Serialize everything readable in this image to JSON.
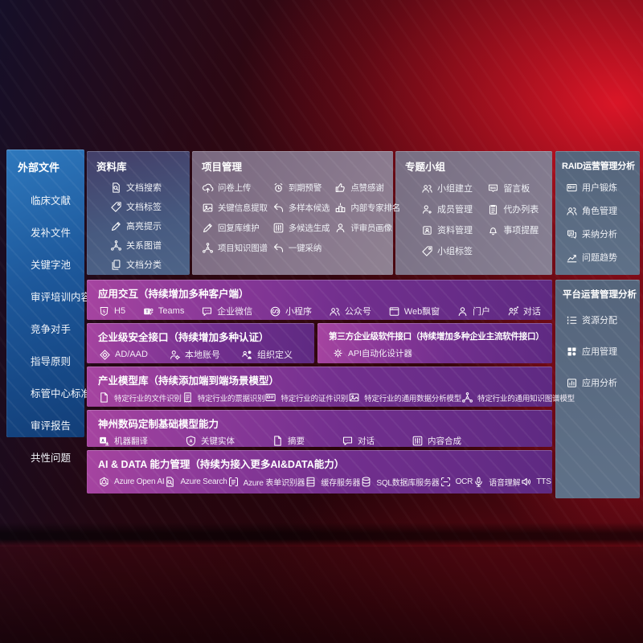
{
  "colors": {
    "bg_red": "#b60f1f",
    "sidebar_blue": "#1f5ea6",
    "panel_mauve": "#82718a",
    "panel_slate": "#5d6d83",
    "band_left": "#a644a0",
    "band_right": "#5e2a82",
    "text": "#ffffff"
  },
  "sidebar": {
    "title": "外部文件",
    "items": [
      "临床文献",
      "发补文件",
      "关键字池",
      "审评培训内容",
      "竞争对手",
      "指导原则",
      "标管中心标准",
      "审评报告",
      "共性问题"
    ]
  },
  "panels": {
    "library": {
      "title": "资料库",
      "items": [
        {
          "icon": "search-doc",
          "label": "文档搜索"
        },
        {
          "icon": "tag",
          "label": "文档标签"
        },
        {
          "icon": "pen",
          "label": "高亮提示"
        },
        {
          "icon": "graph",
          "label": "关系图谱"
        },
        {
          "icon": "docs",
          "label": "文档分类"
        }
      ]
    },
    "project": {
      "title": "项目管理",
      "items": [
        {
          "icon": "cloud-up",
          "label": "问卷上传"
        },
        {
          "icon": "alarm",
          "label": "到期预警"
        },
        {
          "icon": "thumb",
          "label": "点赞感谢"
        },
        {
          "icon": "image",
          "label": "关键信息提取"
        },
        {
          "icon": "reply",
          "label": "多样本候选"
        },
        {
          "icon": "podium",
          "label": "内部专家排名"
        },
        {
          "icon": "pen",
          "label": "回复库维护"
        },
        {
          "icon": "sliders",
          "label": "多候选生成"
        },
        {
          "icon": "person",
          "label": "评审员画像"
        },
        {
          "icon": "graph",
          "label": "项目知识图谱"
        },
        {
          "icon": "reply",
          "label": "一键采纳"
        }
      ]
    },
    "groups": {
      "title": "专题小组",
      "items": [
        {
          "icon": "people",
          "label": "小组建立"
        },
        {
          "icon": "bbs",
          "label": "留言板"
        },
        {
          "icon": "person-add",
          "label": "成员管理"
        },
        {
          "icon": "clipboard",
          "label": "代办列表"
        },
        {
          "icon": "album",
          "label": "资料管理"
        },
        {
          "icon": "bell",
          "label": "事项提醒"
        },
        {
          "icon": "tag",
          "label": "小组标签"
        }
      ]
    },
    "raid": {
      "title": "RAID运营管理分析",
      "items": [
        {
          "icon": "id-card",
          "label": "用户锻炼"
        },
        {
          "icon": "people",
          "label": "角色管理"
        },
        {
          "icon": "chat-qa",
          "label": "采纳分析"
        },
        {
          "icon": "trend",
          "label": "问题趋势"
        }
      ]
    },
    "platform": {
      "title": "平台运营管理分析",
      "items": [
        {
          "icon": "list",
          "label": "资源分配"
        },
        {
          "icon": "grid",
          "label": "应用管理"
        },
        {
          "icon": "chart-card",
          "label": "应用分析"
        }
      ]
    }
  },
  "bands": {
    "interaction": {
      "title": "应用交互（持续增加多种客户端）",
      "items": [
        {
          "icon": "h5",
          "label": "H5"
        },
        {
          "icon": "teams",
          "label": "Teams"
        },
        {
          "icon": "chat",
          "label": "企业微信"
        },
        {
          "icon": "miniprogram",
          "label": "小程序"
        },
        {
          "icon": "people",
          "label": "公众号"
        },
        {
          "icon": "browser",
          "label": "Web飘窗"
        },
        {
          "icon": "person",
          "label": "门户"
        },
        {
          "icon": "chat-duo",
          "label": "对话"
        }
      ]
    },
    "security": {
      "title": "企业级安全接口（持续增加多种认证）",
      "items": [
        {
          "icon": "shield-diamond",
          "label": "AD/AAD"
        },
        {
          "icon": "person-gear",
          "label": "本地账号"
        },
        {
          "icon": "org",
          "label": "组织定义"
        }
      ]
    },
    "thirdparty": {
      "title": "第三方企业级软件接口（持续增加多种企业主流软件接口）",
      "items": [
        {
          "icon": "gear",
          "label": "API自动化设计器"
        }
      ]
    },
    "industry": {
      "title": "产业模型库（持续添加端到端场景模型）",
      "items": [
        {
          "icon": "doc",
          "label": "特定行业的文件识别"
        },
        {
          "icon": "receipt",
          "label": "特定行业的票据识别"
        },
        {
          "icon": "id-card",
          "label": "特定行业的证件识别"
        },
        {
          "icon": "image",
          "label": "特定行业的通用数据分析模型"
        },
        {
          "icon": "graph",
          "label": "特定行业的通用知识图谱模型"
        }
      ]
    },
    "dcits": {
      "title": "神州数码定制基础模型能力",
      "items": [
        {
          "icon": "translate",
          "label": "机器翻译"
        },
        {
          "icon": "shield-a",
          "label": "关键实体"
        },
        {
          "icon": "doc",
          "label": "摘要"
        },
        {
          "icon": "chat",
          "label": "对话"
        },
        {
          "icon": "sliders",
          "label": "内容合成"
        }
      ]
    },
    "aidata": {
      "title": "AI & DATA 能力管理（持续为接入更多AI&DATA能力）",
      "items": [
        {
          "icon": "openai",
          "label": "Azure Open AI"
        },
        {
          "icon": "search-doc",
          "label": "Azure Search"
        },
        {
          "icon": "form",
          "label": "Azure 表单识别器"
        },
        {
          "icon": "server",
          "label": "缓存服务器"
        },
        {
          "icon": "db",
          "label": "SQL数据库服务器"
        },
        {
          "icon": "ocr",
          "label": "OCR"
        },
        {
          "icon": "mic",
          "label": "语音理解"
        },
        {
          "icon": "speaker",
          "label": "TTS"
        }
      ]
    }
  }
}
